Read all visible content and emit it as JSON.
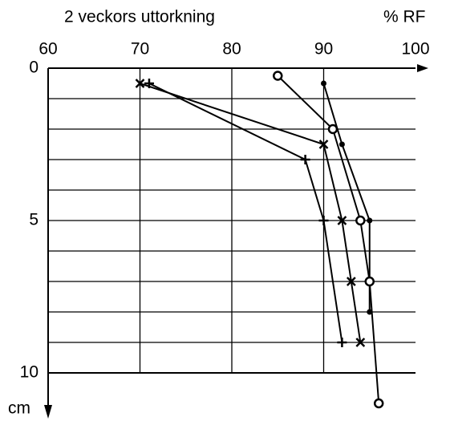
{
  "chart_data": {
    "type": "line",
    "title": "2 veckors uttorkning",
    "xlabel": "% RF",
    "ylabel": "cm",
    "xlim": [
      60,
      100
    ],
    "xticks": [
      60,
      70,
      80,
      90,
      100
    ],
    "ylim": [
      0,
      10
    ],
    "yticks": [
      0,
      5,
      10
    ],
    "ygrid_step": 1,
    "y_inverted": true,
    "grid": true,
    "series": [
      {
        "marker": "dot",
        "color": "#000000",
        "x": [
          90,
          92,
          95,
          95
        ],
        "y": [
          0.5,
          2.5,
          5,
          8
        ]
      },
      {
        "marker": "circle",
        "color": "#000000",
        "x": [
          85,
          91,
          94,
          95,
          96
        ],
        "y": [
          0.25,
          2,
          5,
          7,
          11
        ]
      },
      {
        "marker": "cross",
        "color": "#000000",
        "x": [
          70,
          90,
          92,
          93,
          94
        ],
        "y": [
          0.5,
          2.5,
          5,
          7,
          9
        ]
      },
      {
        "marker": "plus",
        "color": "#000000",
        "x": [
          71,
          88,
          90,
          92
        ],
        "y": [
          0.5,
          3,
          5,
          9
        ]
      }
    ]
  }
}
